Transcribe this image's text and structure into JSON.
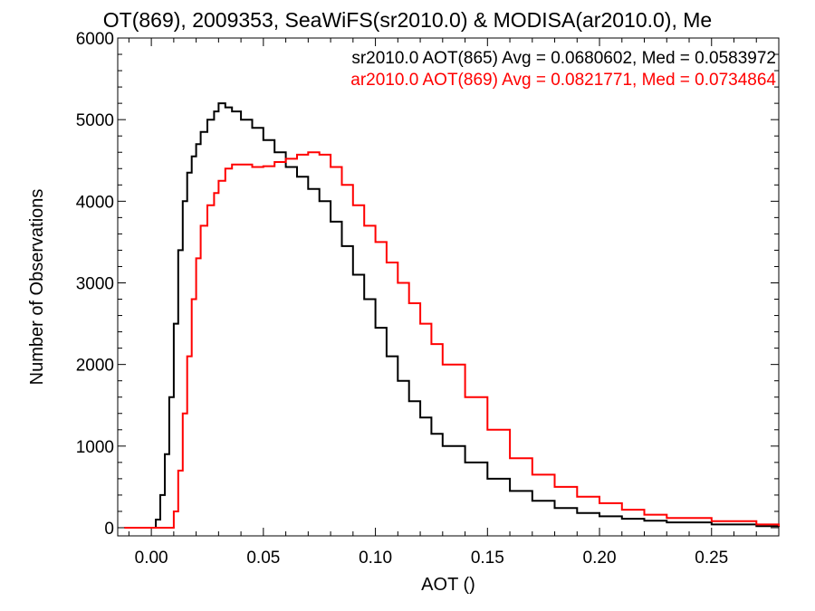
{
  "chart_data": {
    "type": "line",
    "title": "OT(869), 2009353, SeaWiFS(sr2010.0) & MODISA(ar2010.0), Me",
    "xlabel": "AOT ()",
    "ylabel": "Number of Observations",
    "xlim": [
      -0.015,
      0.28
    ],
    "ylim": [
      -100,
      6000
    ],
    "xticks": [
      0.0,
      0.05,
      0.1,
      0.15,
      0.2,
      0.25
    ],
    "xtick_labels": [
      "0.00",
      "0.05",
      "0.10",
      "0.15",
      "0.20",
      "0.25"
    ],
    "yticks": [
      0,
      1000,
      2000,
      3000,
      4000,
      5000,
      6000
    ],
    "ytick_labels": [
      "0",
      "1000",
      "2000",
      "3000",
      "4000",
      "5000",
      "6000"
    ],
    "grid": false,
    "legend_placement": "top-right",
    "series": [
      {
        "name": "sr2010.0 AOT(865) Avg = 0.0680602, Med = 0.0583972",
        "color": "#000000",
        "x": [
          -0.012,
          0.0,
          0.002,
          0.004,
          0.006,
          0.008,
          0.01,
          0.012,
          0.014,
          0.016,
          0.018,
          0.02,
          0.022,
          0.025,
          0.028,
          0.03,
          0.033,
          0.036,
          0.04,
          0.045,
          0.05,
          0.055,
          0.06,
          0.065,
          0.07,
          0.075,
          0.08,
          0.085,
          0.09,
          0.095,
          0.1,
          0.105,
          0.11,
          0.115,
          0.12,
          0.125,
          0.13,
          0.14,
          0.15,
          0.16,
          0.17,
          0.18,
          0.19,
          0.2,
          0.21,
          0.22,
          0.23,
          0.25,
          0.27,
          0.28
        ],
        "values": [
          0,
          0,
          100,
          400,
          900,
          1600,
          2500,
          3400,
          4000,
          4350,
          4550,
          4700,
          4850,
          5000,
          5100,
          5200,
          5150,
          5100,
          5000,
          4900,
          4750,
          4600,
          4420,
          4300,
          4150,
          4000,
          3750,
          3450,
          3100,
          2800,
          2450,
          2100,
          1800,
          1550,
          1350,
          1150,
          1000,
          800,
          600,
          450,
          330,
          240,
          180,
          140,
          110,
          85,
          65,
          40,
          20,
          10
        ]
      },
      {
        "name": "ar2010.0 AOT(869) Avg = 0.0821771, Med = 0.0734864",
        "color": "#ff0000",
        "x": [
          -0.012,
          0.008,
          0.01,
          0.012,
          0.014,
          0.016,
          0.018,
          0.02,
          0.022,
          0.025,
          0.028,
          0.03,
          0.033,
          0.036,
          0.04,
          0.045,
          0.05,
          0.055,
          0.06,
          0.065,
          0.07,
          0.075,
          0.08,
          0.085,
          0.09,
          0.095,
          0.1,
          0.105,
          0.11,
          0.115,
          0.12,
          0.125,
          0.13,
          0.14,
          0.15,
          0.16,
          0.17,
          0.18,
          0.19,
          0.2,
          0.21,
          0.22,
          0.23,
          0.25,
          0.27,
          0.28
        ],
        "values": [
          0,
          0,
          200,
          700,
          1400,
          2100,
          2800,
          3300,
          3700,
          3950,
          4100,
          4250,
          4400,
          4450,
          4450,
          4420,
          4430,
          4480,
          4520,
          4570,
          4600,
          4570,
          4420,
          4200,
          3950,
          3700,
          3500,
          3250,
          3000,
          2750,
          2500,
          2250,
          2000,
          1600,
          1200,
          850,
          650,
          500,
          380,
          300,
          220,
          160,
          120,
          80,
          40,
          20
        ]
      }
    ]
  }
}
